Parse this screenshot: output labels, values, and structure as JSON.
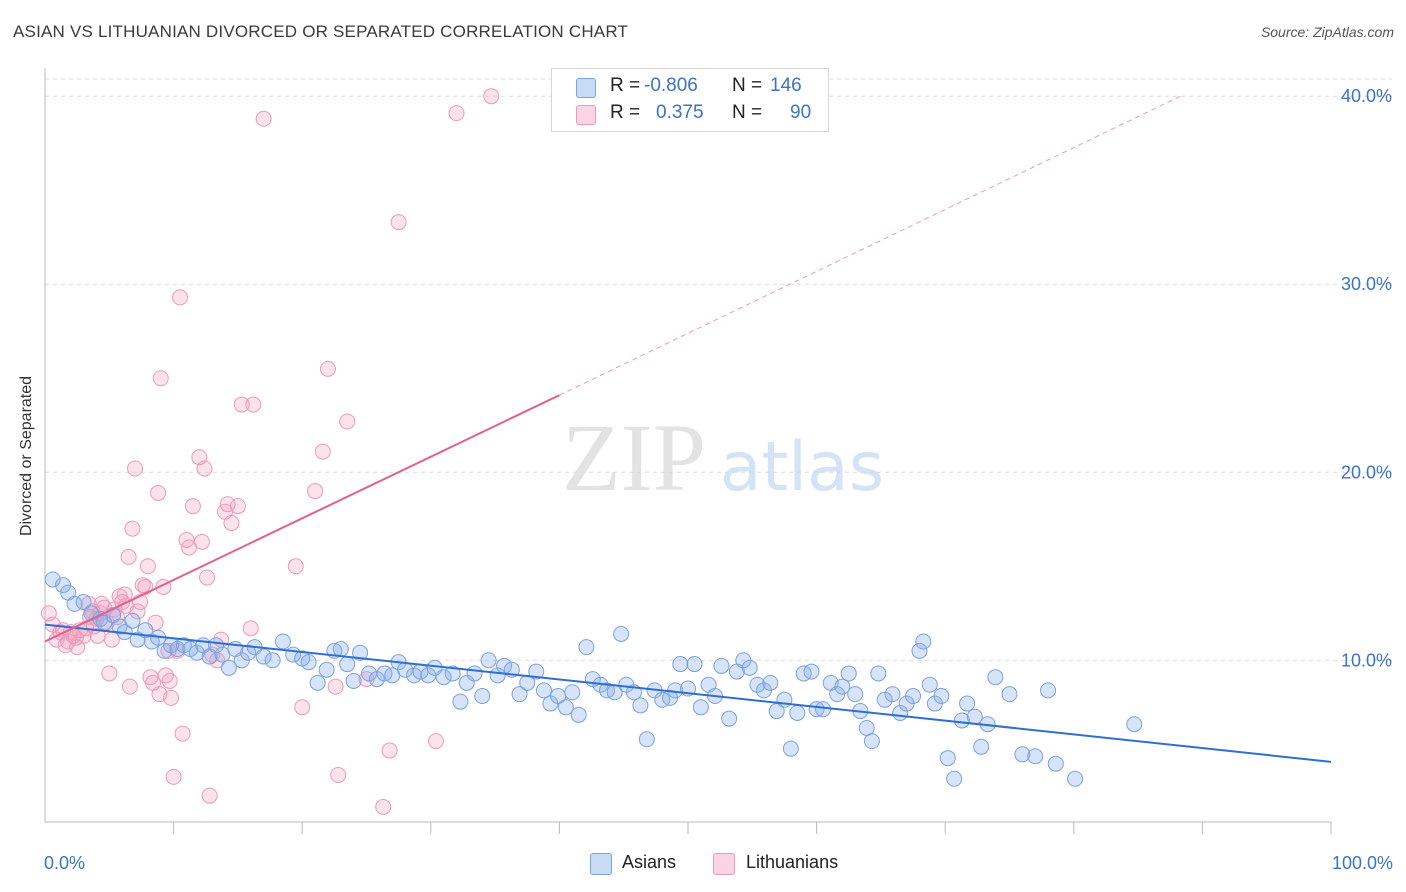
{
  "title": "ASIAN VS LITHUANIAN DIVORCED OR SEPARATED CORRELATION CHART",
  "source": "Source: ZipAtlas.com",
  "watermark": {
    "zip": "ZIP",
    "atlas": "atlas"
  },
  "legend_top": [
    {
      "r_label": "R =",
      "r_value": "-0.806",
      "n_label": "N =",
      "n_value": "146"
    },
    {
      "r_label": "R =",
      "r_value": "0.375",
      "n_label": "N =",
      "n_value": "90"
    }
  ],
  "legend_bottom": [
    "Asians",
    "Lithuanians"
  ],
  "colors": {
    "asian_fill": "rgba(137,176,236,0.35)",
    "asian_stroke": "#7aa3e0",
    "asian_line": "#2f6fd1",
    "lith_fill": "rgba(245,160,190,0.30)",
    "lith_stroke": "#ee9ab8",
    "lith_line": "#e3608e",
    "tick_text": "#3b73c8"
  },
  "chart_data": {
    "type": "scatter",
    "xlabel": "",
    "ylabel": "Divorced or Separated",
    "xlim": [
      0,
      100
    ],
    "ylim": [
      1.4,
      41.5
    ],
    "x_tick_labels": [
      "0.0%",
      "100.0%"
    ],
    "y_ticks": [
      10,
      20,
      30,
      40
    ],
    "y_tick_labels": [
      "10.0%",
      "20.0%",
      "30.0%",
      "40.0%"
    ],
    "grid": true,
    "legend_position": "top-center",
    "series": [
      {
        "name": "Asians",
        "r": -0.806,
        "n": 146,
        "trend": {
          "x": [
            0,
            100
          ],
          "y": [
            11.9,
            4.6
          ]
        },
        "points": [
          [
            0.6,
            14.3
          ],
          [
            1.4,
            14.0
          ],
          [
            1.8,
            13.6
          ],
          [
            2.3,
            13.0
          ],
          [
            3.0,
            13.1
          ],
          [
            3.6,
            12.5
          ],
          [
            4.3,
            12.2
          ],
          [
            4.6,
            12.0
          ],
          [
            5.3,
            12.4
          ],
          [
            5.8,
            11.8
          ],
          [
            6.2,
            11.5
          ],
          [
            6.8,
            12.1
          ],
          [
            7.2,
            11.1
          ],
          [
            7.8,
            11.6
          ],
          [
            8.3,
            11.0
          ],
          [
            8.8,
            11.2
          ],
          [
            9.3,
            10.5
          ],
          [
            9.8,
            10.8
          ],
          [
            10.3,
            10.6
          ],
          [
            10.8,
            10.8
          ],
          [
            11.3,
            10.6
          ],
          [
            11.8,
            10.4
          ],
          [
            12.3,
            10.8
          ],
          [
            12.8,
            10.2
          ],
          [
            13.3,
            10.8
          ],
          [
            13.8,
            10.3
          ],
          [
            14.3,
            9.6
          ],
          [
            14.8,
            10.6
          ],
          [
            15.3,
            10.0
          ],
          [
            15.8,
            10.4
          ],
          [
            16.3,
            10.7
          ],
          [
            17.0,
            10.2
          ],
          [
            17.7,
            10.0
          ],
          [
            18.5,
            11.0
          ],
          [
            19.3,
            10.3
          ],
          [
            20.0,
            10.1
          ],
          [
            20.5,
            9.9
          ],
          [
            21.2,
            8.8
          ],
          [
            21.9,
            9.5
          ],
          [
            22.5,
            10.5
          ],
          [
            23.0,
            10.6
          ],
          [
            23.5,
            9.8
          ],
          [
            24.0,
            8.9
          ],
          [
            24.5,
            10.4
          ],
          [
            25.2,
            9.3
          ],
          [
            25.8,
            9.0
          ],
          [
            26.4,
            9.3
          ],
          [
            27.0,
            9.2
          ],
          [
            27.5,
            9.9
          ],
          [
            28.0,
            9.5
          ],
          [
            28.7,
            9.2
          ],
          [
            29.2,
            9.4
          ],
          [
            29.8,
            9.2
          ],
          [
            30.3,
            9.6
          ],
          [
            31.0,
            9.1
          ],
          [
            31.7,
            9.3
          ],
          [
            32.3,
            7.8
          ],
          [
            32.8,
            8.8
          ],
          [
            33.4,
            9.3
          ],
          [
            34.0,
            8.1
          ],
          [
            34.5,
            10.0
          ],
          [
            35.2,
            9.2
          ],
          [
            35.7,
            9.7
          ],
          [
            36.3,
            9.5
          ],
          [
            36.9,
            8.2
          ],
          [
            37.5,
            8.8
          ],
          [
            38.2,
            9.4
          ],
          [
            38.8,
            8.4
          ],
          [
            39.3,
            7.7
          ],
          [
            39.9,
            8.1
          ],
          [
            40.5,
            7.5
          ],
          [
            41.0,
            8.3
          ],
          [
            41.5,
            7.1
          ],
          [
            42.1,
            10.7
          ],
          [
            42.6,
            9.0
          ],
          [
            43.2,
            8.7
          ],
          [
            43.7,
            8.4
          ],
          [
            44.3,
            8.3
          ],
          [
            44.8,
            11.4
          ],
          [
            45.2,
            8.7
          ],
          [
            45.8,
            8.3
          ],
          [
            46.3,
            7.6
          ],
          [
            46.8,
            5.8
          ],
          [
            47.4,
            8.4
          ],
          [
            48.0,
            7.9
          ],
          [
            48.6,
            8.0
          ],
          [
            49.0,
            8.4
          ],
          [
            49.4,
            9.8
          ],
          [
            50.0,
            8.5
          ],
          [
            50.5,
            9.8
          ],
          [
            51.0,
            7.5
          ],
          [
            51.6,
            8.7
          ],
          [
            52.1,
            8.1
          ],
          [
            52.6,
            9.7
          ],
          [
            53.2,
            6.9
          ],
          [
            53.8,
            9.4
          ],
          [
            54.3,
            10.0
          ],
          [
            54.8,
            9.6
          ],
          [
            55.4,
            8.7
          ],
          [
            55.9,
            8.4
          ],
          [
            56.4,
            8.8
          ],
          [
            56.9,
            7.3
          ],
          [
            57.5,
            7.9
          ],
          [
            58.0,
            5.3
          ],
          [
            58.5,
            7.2
          ],
          [
            59.0,
            9.3
          ],
          [
            59.6,
            9.4
          ],
          [
            60.0,
            7.4
          ],
          [
            60.5,
            7.4
          ],
          [
            61.1,
            8.8
          ],
          [
            61.6,
            8.2
          ],
          [
            62.0,
            8.6
          ],
          [
            62.5,
            9.3
          ],
          [
            63.0,
            8.2
          ],
          [
            63.4,
            7.3
          ],
          [
            63.9,
            6.4
          ],
          [
            64.3,
            5.7
          ],
          [
            64.8,
            9.3
          ],
          [
            65.3,
            7.9
          ],
          [
            65.9,
            8.2
          ],
          [
            66.5,
            7.2
          ],
          [
            67.0,
            7.7
          ],
          [
            67.5,
            8.1
          ],
          [
            68.0,
            10.5
          ],
          [
            68.3,
            11.0
          ],
          [
            68.8,
            8.7
          ],
          [
            69.2,
            7.7
          ],
          [
            69.7,
            8.1
          ],
          [
            70.2,
            4.8
          ],
          [
            70.7,
            3.7
          ],
          [
            71.3,
            6.8
          ],
          [
            71.7,
            7.7
          ],
          [
            72.3,
            7.0
          ],
          [
            72.8,
            5.4
          ],
          [
            73.3,
            6.6
          ],
          [
            73.9,
            9.1
          ],
          [
            75.0,
            8.2
          ],
          [
            76.0,
            5.0
          ],
          [
            77.0,
            4.9
          ],
          [
            78.0,
            8.4
          ],
          [
            78.6,
            4.5
          ],
          [
            80.1,
            3.7
          ],
          [
            84.7,
            6.6
          ]
        ]
      },
      {
        "name": "Lithuanians",
        "r": 0.375,
        "n": 90,
        "trend": {
          "x": [
            0,
            40
          ],
          "y": [
            11.0,
            24.1
          ],
          "extended": {
            "x": [
              40,
              88.3
            ],
            "y": [
              24.1,
              40.0
            ]
          }
        },
        "points": [
          [
            0.3,
            12.5
          ],
          [
            0.6,
            11.9
          ],
          [
            0.9,
            11.1
          ],
          [
            1.2,
            11.5
          ],
          [
            1.4,
            11.6
          ],
          [
            1.6,
            10.8
          ],
          [
            1.8,
            11.0
          ],
          [
            2.0,
            11.5
          ],
          [
            2.2,
            11.3
          ],
          [
            2.4,
            11.2
          ],
          [
            2.5,
            10.7
          ],
          [
            2.7,
            11.6
          ],
          [
            3.0,
            11.3
          ],
          [
            3.2,
            11.7
          ],
          [
            3.4,
            13.0
          ],
          [
            3.5,
            12.3
          ],
          [
            3.7,
            12.6
          ],
          [
            3.8,
            11.8
          ],
          [
            4.0,
            12.2
          ],
          [
            4.1,
            11.3
          ],
          [
            4.3,
            12.5
          ],
          [
            4.4,
            13.0
          ],
          [
            4.6,
            12.8
          ],
          [
            4.8,
            12.0
          ],
          [
            5.0,
            9.3
          ],
          [
            5.2,
            11.1
          ],
          [
            5.4,
            12.7
          ],
          [
            5.6,
            12.3
          ],
          [
            5.8,
            13.4
          ],
          [
            6.0,
            13.1
          ],
          [
            6.2,
            13.5
          ],
          [
            6.3,
            12.9
          ],
          [
            6.5,
            15.5
          ],
          [
            6.6,
            8.6
          ],
          [
            6.8,
            17.0
          ],
          [
            7.0,
            20.2
          ],
          [
            7.2,
            12.6
          ],
          [
            7.4,
            13.1
          ],
          [
            7.6,
            14.0
          ],
          [
            7.8,
            13.9
          ],
          [
            8.0,
            15.0
          ],
          [
            8.2,
            9.1
          ],
          [
            8.4,
            8.8
          ],
          [
            8.6,
            12.0
          ],
          [
            8.8,
            18.9
          ],
          [
            8.9,
            8.2
          ],
          [
            9.0,
            25.0
          ],
          [
            9.2,
            13.9
          ],
          [
            9.4,
            9.2
          ],
          [
            9.6,
            10.5
          ],
          [
            9.7,
            8.9
          ],
          [
            9.8,
            8.0
          ],
          [
            10.0,
            3.8
          ],
          [
            10.3,
            10.5
          ],
          [
            10.5,
            29.3
          ],
          [
            10.7,
            6.1
          ],
          [
            11.0,
            16.4
          ],
          [
            11.2,
            16.0
          ],
          [
            11.5,
            18.2
          ],
          [
            12.0,
            20.8
          ],
          [
            12.2,
            16.3
          ],
          [
            12.4,
            20.2
          ],
          [
            12.6,
            14.4
          ],
          [
            12.8,
            2.8
          ],
          [
            13.0,
            10.3
          ],
          [
            13.4,
            10.0
          ],
          [
            13.7,
            11.1
          ],
          [
            14.0,
            17.9
          ],
          [
            14.2,
            18.3
          ],
          [
            14.5,
            17.3
          ],
          [
            15.0,
            18.2
          ],
          [
            15.3,
            23.6
          ],
          [
            16.0,
            11.7
          ],
          [
            16.2,
            23.6
          ],
          [
            17.0,
            38.8
          ],
          [
            19.5,
            15.0
          ],
          [
            20.0,
            7.5
          ],
          [
            21.0,
            19.0
          ],
          [
            21.6,
            21.1
          ],
          [
            22.0,
            25.5
          ],
          [
            22.6,
            8.6
          ],
          [
            22.8,
            3.9
          ],
          [
            23.5,
            22.7
          ],
          [
            25.0,
            9.0
          ],
          [
            26.3,
            2.2
          ],
          [
            26.8,
            5.2
          ],
          [
            27.5,
            33.3
          ],
          [
            30.4,
            5.7
          ],
          [
            32.0,
            39.1
          ],
          [
            34.7,
            40.0
          ]
        ]
      }
    ]
  }
}
